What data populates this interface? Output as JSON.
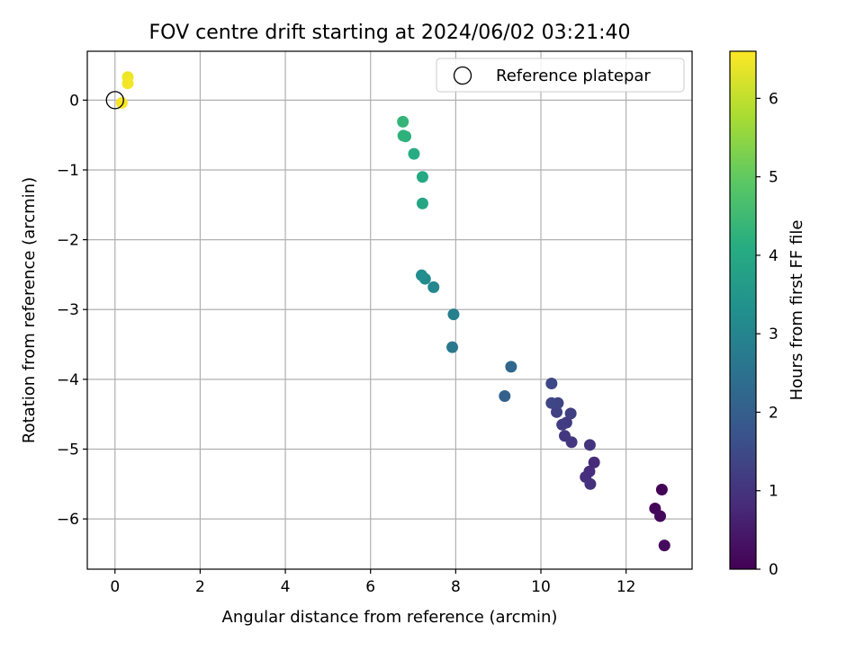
{
  "chart_data": {
    "type": "scatter",
    "title": "FOV centre drift starting at 2024/06/02 03:21:40",
    "xlabel": "Angular distance from reference (arcmin)",
    "ylabel": "Rotation from reference (arcmin)",
    "xlim": [
      -0.65,
      13.55
    ],
    "ylim": [
      -6.72,
      0.7
    ],
    "xticks": [
      0,
      2,
      4,
      6,
      8,
      10,
      12
    ],
    "yticks": [
      0,
      -1,
      -2,
      -3,
      -4,
      -5,
      -6
    ],
    "xtick_labels": [
      "0",
      "2",
      "4",
      "6",
      "8",
      "10",
      "12"
    ],
    "ytick_labels": [
      "0",
      "−1",
      "−2",
      "−3",
      "−4",
      "−5",
      "−6"
    ],
    "grid": true,
    "legend": {
      "location": "top-right",
      "entries": [
        {
          "label": "Reference platepar",
          "marker": "open-circle"
        }
      ]
    },
    "reference_point": {
      "x": 0,
      "y": 0
    },
    "colorbar": {
      "label": "Hours from first FF file",
      "colormap": "viridis",
      "range": [
        0,
        6.6
      ],
      "ticks": [
        0,
        1,
        2,
        3,
        4,
        5,
        6
      ],
      "tick_labels": [
        "0",
        "1",
        "2",
        "3",
        "4",
        "5",
        "6"
      ]
    },
    "points": [
      {
        "x": 12.84,
        "y": -5.58,
        "c": 0.05
      },
      {
        "x": 12.68,
        "y": -5.85,
        "c": 0.1
      },
      {
        "x": 12.8,
        "y": -5.96,
        "c": 0.15
      },
      {
        "x": 12.9,
        "y": -6.38,
        "c": 0.2
      },
      {
        "x": 11.25,
        "y": -5.19,
        "c": 0.8
      },
      {
        "x": 11.14,
        "y": -5.32,
        "c": 0.85
      },
      {
        "x": 11.05,
        "y": -5.4,
        "c": 0.9
      },
      {
        "x": 11.16,
        "y": -5.5,
        "c": 0.95
      },
      {
        "x": 11.15,
        "y": -4.94,
        "c": 1.0
      },
      {
        "x": 10.72,
        "y": -4.9,
        "c": 1.05
      },
      {
        "x": 10.56,
        "y": -4.81,
        "c": 1.1
      },
      {
        "x": 10.6,
        "y": -4.62,
        "c": 1.15
      },
      {
        "x": 10.5,
        "y": -4.65,
        "c": 1.2
      },
      {
        "x": 10.7,
        "y": -4.49,
        "c": 1.25
      },
      {
        "x": 10.37,
        "y": -4.47,
        "c": 1.3
      },
      {
        "x": 10.4,
        "y": -4.34,
        "c": 1.35
      },
      {
        "x": 10.25,
        "y": -4.34,
        "c": 1.4
      },
      {
        "x": 10.25,
        "y": -4.06,
        "c": 1.45
      },
      {
        "x": 9.15,
        "y": -4.24,
        "c": 2.05
      },
      {
        "x": 9.3,
        "y": -3.82,
        "c": 2.2
      },
      {
        "x": 7.92,
        "y": -3.54,
        "c": 2.65
      },
      {
        "x": 7.95,
        "y": -3.07,
        "c": 2.85
      },
      {
        "x": 7.48,
        "y": -2.68,
        "c": 3.05
      },
      {
        "x": 7.28,
        "y": -2.56,
        "c": 3.15
      },
      {
        "x": 7.2,
        "y": -2.51,
        "c": 3.25
      },
      {
        "x": 7.22,
        "y": -1.48,
        "c": 3.9
      },
      {
        "x": 7.22,
        "y": -1.1,
        "c": 4.0
      },
      {
        "x": 7.02,
        "y": -0.77,
        "c": 4.1
      },
      {
        "x": 6.82,
        "y": -0.52,
        "c": 4.2
      },
      {
        "x": 6.77,
        "y": -0.51,
        "c": 4.25
      },
      {
        "x": 6.76,
        "y": -0.31,
        "c": 4.35
      },
      {
        "x": 0.3,
        "y": 0.33,
        "c": 6.45
      },
      {
        "x": 0.3,
        "y": 0.24,
        "c": 6.5
      },
      {
        "x": 0.16,
        "y": -0.04,
        "c": 6.55
      }
    ]
  }
}
